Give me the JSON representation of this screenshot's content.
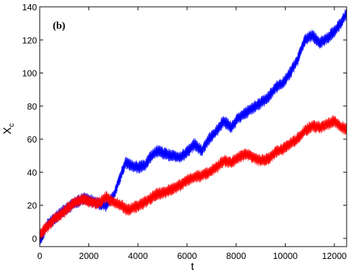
{
  "chart_data": {
    "type": "line",
    "title": "",
    "panel_label": "(b)",
    "xlabel": "t",
    "ylabel": "X",
    "ylabel_subscript": "c",
    "xlim": [
      0,
      12500
    ],
    "ylim": [
      -5,
      140
    ],
    "xticks": [
      0,
      2000,
      4000,
      6000,
      8000,
      10000,
      12000
    ],
    "xtick_labels": [
      "0",
      "2000",
      "4000",
      "6000",
      "8000",
      "10000",
      "12000"
    ],
    "yticks": [
      0,
      20,
      40,
      60,
      80,
      100,
      120,
      140
    ],
    "ytick_labels": [
      "0",
      "20",
      "40",
      "60",
      "80",
      "100",
      "120",
      "140"
    ],
    "grid": false,
    "series": [
      {
        "color": "#0000ff",
        "amplitude": 4,
        "x": [
          0,
          300,
          600,
          900,
          1200,
          1500,
          1800,
          2100,
          2400,
          2700,
          3000,
          3300,
          3500,
          3700,
          4000,
          4300,
          4500,
          4800,
          5100,
          5400,
          5700,
          6000,
          6300,
          6600,
          6900,
          7200,
          7500,
          7800,
          8100,
          8400,
          8700,
          9000,
          9300,
          9600,
          9900,
          10200,
          10500,
          10800,
          11100,
          11400,
          11700,
          12000,
          12300,
          12500
        ],
        "y": [
          -2,
          8,
          12,
          16,
          19,
          22,
          24,
          23,
          21,
          20,
          25,
          38,
          46,
          44,
          43,
          44,
          49,
          53,
          51,
          50,
          49,
          52,
          57,
          53,
          60,
          65,
          71,
          67,
          73,
          76,
          79,
          82,
          85,
          91,
          94,
          100,
          108,
          120,
          123,
          118,
          121,
          125,
          131,
          136
        ]
      },
      {
        "color": "#ff0000",
        "amplitude": 4,
        "x": [
          0,
          300,
          600,
          900,
          1200,
          1500,
          1800,
          2100,
          2400,
          2700,
          3000,
          3300,
          3600,
          3900,
          4200,
          4500,
          4800,
          5100,
          5400,
          5700,
          6000,
          6300,
          6600,
          6900,
          7200,
          7500,
          7800,
          8100,
          8400,
          8700,
          9000,
          9300,
          9600,
          9900,
          10200,
          10500,
          10800,
          11100,
          11400,
          11700,
          12000,
          12300,
          12500
        ],
        "y": [
          2,
          7,
          12,
          15,
          19,
          22,
          24,
          22,
          21,
          25,
          22,
          20,
          17,
          19,
          21,
          24,
          27,
          28,
          30,
          32,
          35,
          37,
          38,
          40,
          43,
          47,
          46,
          49,
          51,
          49,
          47,
          48,
          52,
          54,
          57,
          60,
          65,
          68,
          67,
          69,
          71,
          67,
          66
        ]
      }
    ]
  }
}
